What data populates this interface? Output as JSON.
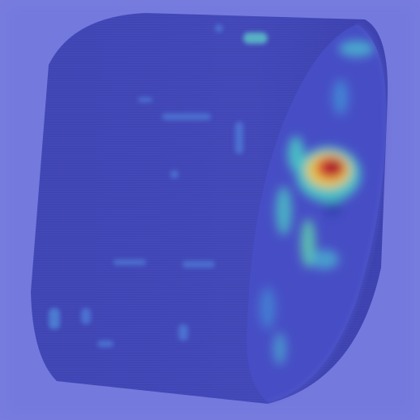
{
  "image": {
    "subject": "heatmap-overlay-on-cylindrical-object",
    "colors": {
      "background": "#7a7fe0",
      "object_body": "#3d44b6",
      "object_body_dark": "#2a2e96",
      "object_face": "#4048c2",
      "heat_low": "#3b7fd6",
      "heat_mid": "#43d1c2",
      "heat_high": "#f2d23a",
      "heat_peak": "#e0281e",
      "heat_core": "#9a0f12"
    }
  }
}
